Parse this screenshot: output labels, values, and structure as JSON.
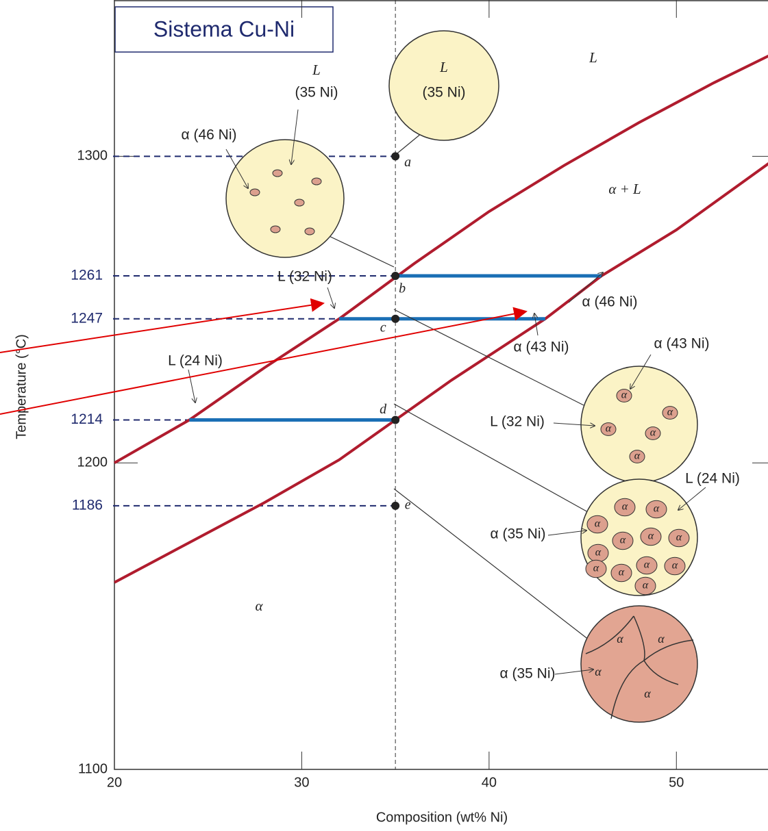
{
  "chart_data": {
    "type": "line",
    "title": "Sistema Cu-Ni",
    "x_label": "Composition (wt% Ni)",
    "y_label": "Temperature (°C)",
    "xlim": [
      20,
      55
    ],
    "ylim": [
      1100,
      1351
    ],
    "xticks": [
      20,
      30,
      40,
      50
    ],
    "yticks": [
      1100,
      1200,
      1300
    ],
    "series": [
      {
        "color": "#b01c2e",
        "x": [
          20,
          24,
          28,
          32,
          36,
          40,
          44,
          48,
          52,
          55
        ],
        "values": [
          1200,
          1214,
          1231,
          1247,
          1265,
          1282,
          1297,
          1311,
          1324,
          1333
        ]
      },
      {
        "color": "#b01c2e",
        "x": [
          20,
          24,
          28,
          32,
          35,
          38,
          43,
          46,
          50,
          55
        ],
        "values": [
          1161,
          1174,
          1187,
          1201,
          1214,
          1227,
          1247,
          1261,
          1276,
          1298
        ]
      }
    ],
    "composition": 35,
    "points": {
      "labels": [
        "a",
        "b",
        "c",
        "d",
        "e"
      ],
      "values": [
        1300,
        1261,
        1247,
        1214,
        1186
      ]
    },
    "levels": [
      1261,
      1247,
      1214,
      1186
    ],
    "tie_lines": [
      {
        "x": [
          35,
          46
        ],
        "value": 1261
      },
      {
        "x": [
          32,
          43
        ],
        "value": 1247
      },
      {
        "x": [
          24,
          35
        ],
        "value": 1214
      }
    ],
    "annotations": [
      "L",
      "α + L",
      "α",
      "L",
      "(35 Ni)",
      "L",
      "(35 Ni)",
      "α (46 Ni)",
      "L (32 Ni)",
      "α (46 Ni)",
      "α (43 Ni)",
      "L (24 Ni)",
      "α (43 Ni)",
      "L (32 Ni)",
      "L (24 Ni)",
      "α (35 Ni)",
      "α (35 Ni)"
    ],
    "grain_label": "α"
  }
}
